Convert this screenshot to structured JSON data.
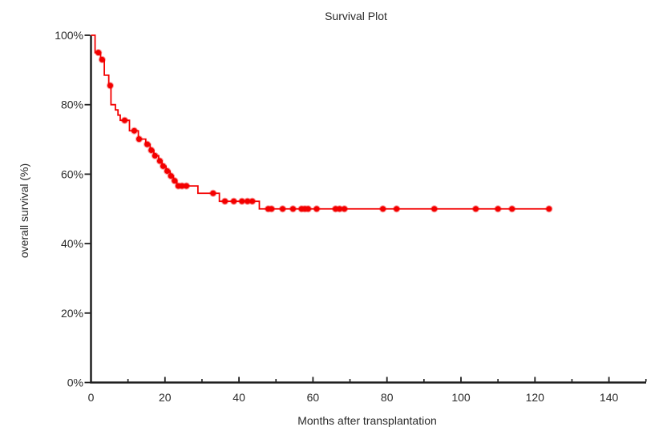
{
  "title": "Survival Plot",
  "colors": {
    "curve": "#f30000",
    "marker": "#f30000",
    "marker_halo": "rgba(243,0,0,0.35)",
    "axis": "#1f1f1f",
    "text": "#2a2a2a",
    "background": "#ffffff"
  },
  "chart_data": {
    "type": "line",
    "subtype": "kaplan-meier-step",
    "title": "Survival Plot",
    "xlabel": "Months after transplantation",
    "ylabel": "overall survival (%)",
    "xlim": [
      0,
      150
    ],
    "ylim": [
      0,
      100
    ],
    "grid": false,
    "legend": null,
    "x_major_ticks": [
      {
        "value": 0,
        "label": "0"
      },
      {
        "value": 20,
        "label": "20"
      },
      {
        "value": 40,
        "label": "40"
      },
      {
        "value": 60,
        "label": "60"
      },
      {
        "value": 80,
        "label": "80"
      },
      {
        "value": 100,
        "label": "100"
      },
      {
        "value": 120,
        "label": "120"
      },
      {
        "value": 140,
        "label": "140"
      }
    ],
    "x_minor_ticks": [
      10,
      30,
      50,
      70,
      90,
      110,
      130,
      150
    ],
    "y_ticks": [
      {
        "value": 0,
        "label": "0%"
      },
      {
        "value": 20,
        "label": "20%"
      },
      {
        "value": 40,
        "label": "40%"
      },
      {
        "value": 60,
        "label": "60%"
      },
      {
        "value": 80,
        "label": "80%"
      },
      {
        "value": 100,
        "label": "100%"
      }
    ],
    "series": [
      {
        "name": "overall survival",
        "color": "#f30000",
        "start": [
          0,
          100
        ],
        "end_month": 124,
        "steps": [
          [
            1.1,
            95
          ],
          [
            2.6,
            93
          ],
          [
            3.6,
            88.5
          ],
          [
            4.8,
            85.5
          ],
          [
            5.4,
            80
          ],
          [
            6.6,
            78.5
          ],
          [
            7.3,
            77
          ],
          [
            7.9,
            75.5
          ],
          [
            10.4,
            72.5
          ],
          [
            12.8,
            70.1
          ],
          [
            14.8,
            68.6
          ],
          [
            16,
            66.9
          ],
          [
            17,
            65.3
          ],
          [
            18.3,
            63.8
          ],
          [
            19.2,
            62.3
          ],
          [
            20.3,
            60.9
          ],
          [
            21.4,
            59.5
          ],
          [
            22.3,
            58.1
          ],
          [
            23.2,
            56.6
          ],
          [
            28.9,
            54.5
          ],
          [
            34.7,
            52.2
          ],
          [
            45.5,
            50
          ]
        ],
        "censored": [
          [
            2,
            95
          ],
          [
            3,
            93
          ],
          [
            5.2,
            85.5
          ],
          [
            9.1,
            75.5
          ],
          [
            11.7,
            72.5
          ],
          [
            13,
            70.1
          ],
          [
            15.2,
            68.6
          ],
          [
            16.3,
            66.9
          ],
          [
            17.3,
            65.3
          ],
          [
            18.6,
            63.8
          ],
          [
            19.5,
            62.3
          ],
          [
            20.6,
            60.9
          ],
          [
            21.6,
            59.5
          ],
          [
            22.6,
            58.1
          ],
          [
            23.6,
            56.6
          ],
          [
            24.6,
            56.6
          ],
          [
            25.8,
            56.6
          ],
          [
            33,
            54.5
          ],
          [
            36.2,
            52.2
          ],
          [
            38.6,
            52.2
          ],
          [
            40.8,
            52.2
          ],
          [
            42.3,
            52.2
          ],
          [
            43.6,
            52.2
          ],
          [
            47.9,
            50
          ],
          [
            48.8,
            50
          ],
          [
            51.8,
            50
          ],
          [
            54.6,
            50
          ],
          [
            56.9,
            50
          ],
          [
            57.8,
            50
          ],
          [
            58.7,
            50
          ],
          [
            61,
            50
          ],
          [
            66.1,
            50
          ],
          [
            67.2,
            50
          ],
          [
            68.5,
            50
          ],
          [
            78.9,
            50
          ],
          [
            82.6,
            50
          ],
          [
            92.8,
            50
          ],
          [
            104,
            50
          ],
          [
            110,
            50
          ],
          [
            113.8,
            50
          ],
          [
            123.8,
            50
          ]
        ]
      }
    ]
  }
}
